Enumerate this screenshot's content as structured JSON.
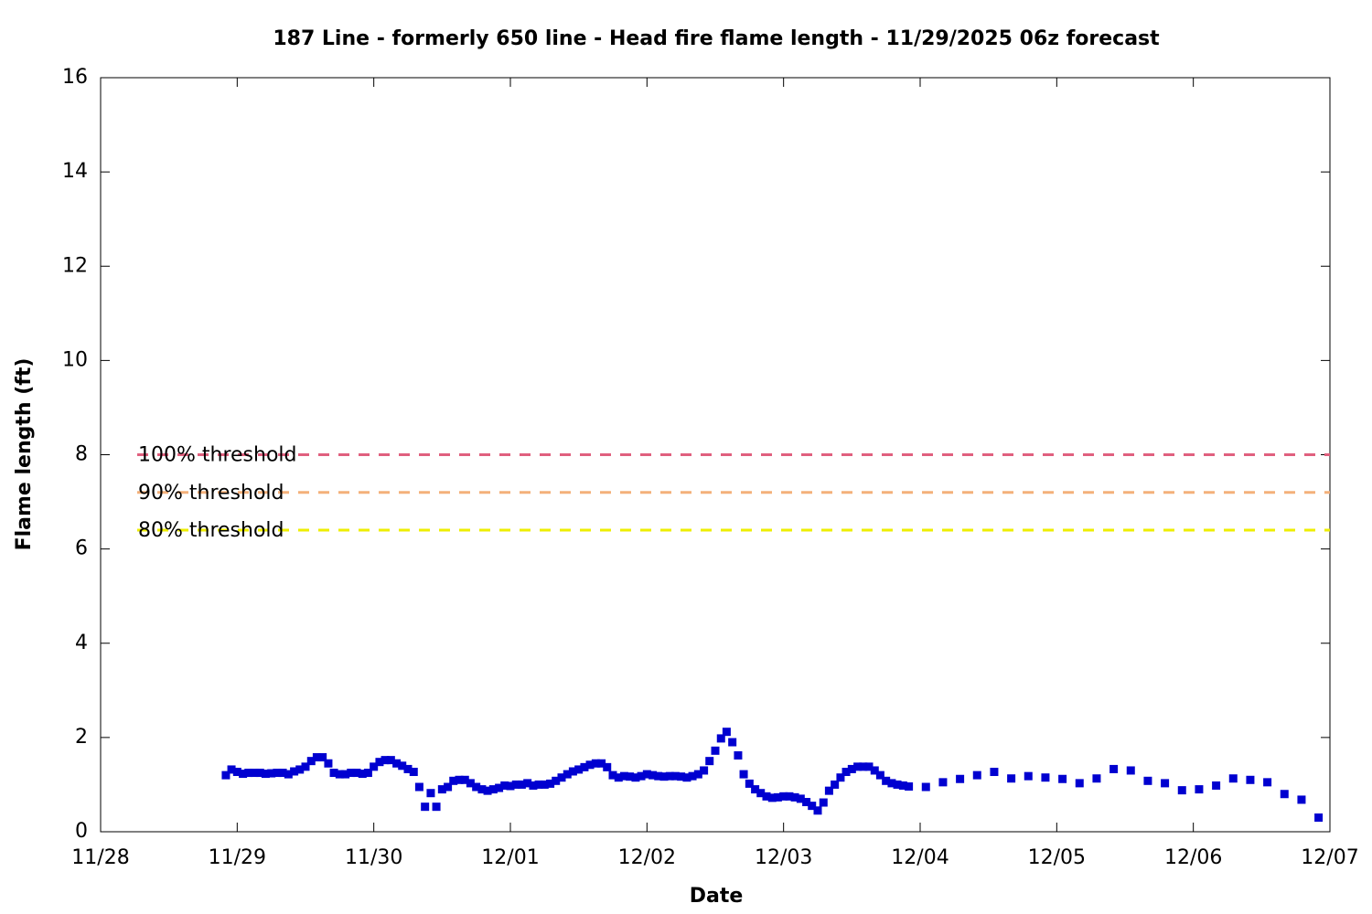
{
  "chart_data": {
    "type": "scatter",
    "title": "187 Line - formerly 650 line - Head fire flame length - 11/29/2025 06z forecast",
    "xlabel": "Date",
    "ylabel": "Flame length (ft)",
    "xlim": [
      0,
      9
    ],
    "xticks": [
      {
        "value": 0,
        "label": "11/28"
      },
      {
        "value": 1,
        "label": "11/29"
      },
      {
        "value": 2,
        "label": "11/30"
      },
      {
        "value": 3,
        "label": "12/01"
      },
      {
        "value": 4,
        "label": "12/02"
      },
      {
        "value": 5,
        "label": "12/03"
      },
      {
        "value": 6,
        "label": "12/04"
      },
      {
        "value": 7,
        "label": "12/05"
      },
      {
        "value": 8,
        "label": "12/06"
      },
      {
        "value": 9,
        "label": "12/07"
      }
    ],
    "ylim": [
      0,
      16
    ],
    "yticks": [
      0,
      2,
      4,
      6,
      8,
      10,
      12,
      14,
      16
    ],
    "thresholds": [
      {
        "label": "100% threshold",
        "value": 8,
        "color": "#e0607e"
      },
      {
        "label": "90% threshold",
        "value": 7.2,
        "color": "#f4b07a"
      },
      {
        "label": "80% threshold",
        "value": 6.4,
        "color": "#eeee00"
      }
    ],
    "series": [
      {
        "color": "#0000d0",
        "x": [
          0.917,
          0.958,
          1.0,
          1.042,
          1.083,
          1.125,
          1.167,
          1.208,
          1.25,
          1.292,
          1.333,
          1.375,
          1.417,
          1.458,
          1.5,
          1.542,
          1.583,
          1.625,
          1.667,
          1.708,
          1.75,
          1.792,
          1.833,
          1.875,
          1.917,
          1.958,
          2.0,
          2.042,
          2.083,
          2.125,
          2.167,
          2.208,
          2.25,
          2.292,
          2.333,
          2.375,
          2.417,
          2.458,
          2.5,
          2.542,
          2.583,
          2.625,
          2.667,
          2.708,
          2.75,
          2.792,
          2.833,
          2.875,
          2.917,
          2.958,
          3.0,
          3.042,
          3.083,
          3.125,
          3.167,
          3.208,
          3.25,
          3.292,
          3.333,
          3.375,
          3.417,
          3.458,
          3.5,
          3.542,
          3.583,
          3.625,
          3.667,
          3.708,
          3.75,
          3.792,
          3.833,
          3.875,
          3.917,
          3.958,
          4.0,
          4.042,
          4.083,
          4.125,
          4.167,
          4.208,
          4.25,
          4.292,
          4.333,
          4.375,
          4.417,
          4.458,
          4.5,
          4.542,
          4.583,
          4.625,
          4.667,
          4.708,
          4.75,
          4.792,
          4.833,
          4.875,
          4.917,
          4.958,
          5.0,
          5.042,
          5.083,
          5.125,
          5.167,
          5.208,
          5.25,
          5.292,
          5.333,
          5.375,
          5.417,
          5.458,
          5.5,
          5.542,
          5.583,
          5.625,
          5.667,
          5.708,
          5.75,
          5.792,
          5.833,
          5.875,
          5.917,
          6.042,
          6.167,
          6.292,
          6.417,
          6.542,
          6.667,
          6.792,
          6.917,
          7.042,
          7.167,
          7.292,
          7.417,
          7.542,
          7.667,
          7.792,
          7.917,
          8.042,
          8.167,
          8.292,
          8.417,
          8.542,
          8.667,
          8.792,
          8.917
        ],
        "values": [
          1.2,
          1.32,
          1.27,
          1.23,
          1.25,
          1.25,
          1.25,
          1.23,
          1.24,
          1.25,
          1.25,
          1.22,
          1.28,
          1.32,
          1.38,
          1.5,
          1.58,
          1.58,
          1.45,
          1.25,
          1.22,
          1.22,
          1.25,
          1.25,
          1.23,
          1.25,
          1.38,
          1.48,
          1.52,
          1.52,
          1.45,
          1.4,
          1.33,
          1.27,
          0.95,
          0.53,
          0.82,
          0.53,
          0.9,
          0.95,
          1.08,
          1.1,
          1.1,
          1.03,
          0.95,
          0.9,
          0.87,
          0.9,
          0.93,
          0.98,
          0.97,
          1.0,
          1.0,
          1.03,
          0.98,
          1.0,
          1.0,
          1.02,
          1.08,
          1.15,
          1.22,
          1.28,
          1.32,
          1.37,
          1.42,
          1.45,
          1.45,
          1.37,
          1.2,
          1.15,
          1.18,
          1.17,
          1.15,
          1.18,
          1.22,
          1.2,
          1.18,
          1.17,
          1.18,
          1.18,
          1.17,
          1.15,
          1.18,
          1.22,
          1.3,
          1.5,
          1.72,
          1.98,
          2.12,
          1.9,
          1.62,
          1.22,
          1.02,
          0.9,
          0.82,
          0.75,
          0.72,
          0.73,
          0.75,
          0.75,
          0.73,
          0.7,
          0.63,
          0.55,
          0.45,
          0.62,
          0.87,
          1.0,
          1.15,
          1.27,
          1.33,
          1.38,
          1.38,
          1.38,
          1.3,
          1.2,
          1.08,
          1.03,
          1.0,
          0.98,
          0.96,
          0.95,
          1.05,
          1.12,
          1.2,
          1.27,
          1.13,
          1.18,
          1.15,
          1.12,
          1.03,
          1.13,
          1.33,
          1.3,
          1.08,
          1.03,
          0.88,
          0.9,
          0.98,
          1.13,
          1.1,
          1.05,
          0.8,
          0.68,
          0.3
        ]
      }
    ]
  }
}
